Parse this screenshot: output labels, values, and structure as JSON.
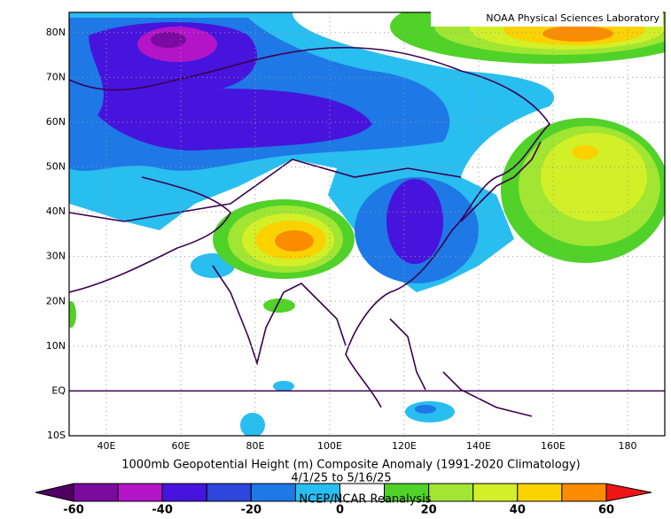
{
  "header": {
    "credit": "NOAA Physical Sciences Laboratory"
  },
  "map": {
    "xlim": [
      30,
      190
    ],
    "ylim": [
      -10,
      84.5
    ],
    "lat_ticks": [
      {
        "value": 80,
        "label": "80N"
      },
      {
        "value": 70,
        "label": "70N"
      },
      {
        "value": 60,
        "label": "60N"
      },
      {
        "value": 50,
        "label": "50N"
      },
      {
        "value": 40,
        "label": "40N"
      },
      {
        "value": 30,
        "label": "30N"
      },
      {
        "value": 20,
        "label": "20N"
      },
      {
        "value": 10,
        "label": "10N"
      },
      {
        "value": 0,
        "label": "EQ"
      },
      {
        "value": -10,
        "label": "10S"
      }
    ],
    "lon_ticks": [
      {
        "value": 40,
        "label": "40E"
      },
      {
        "value": 60,
        "label": "60E"
      },
      {
        "value": 80,
        "label": "80E"
      },
      {
        "value": 100,
        "label": "100E"
      },
      {
        "value": 120,
        "label": "120E"
      },
      {
        "value": 140,
        "label": "140E"
      },
      {
        "value": 160,
        "label": "160E"
      },
      180
    ]
  },
  "caption": {
    "title": "1000mb Geopotential Height (m) Composite Anomaly (1991-2020 Climatology)",
    "dates": "4/1/25  to 5/16/25",
    "source": "NCEP/NCAR Reanalysis"
  },
  "colorbar": {
    "ticks": [
      -60,
      -40,
      -20,
      0,
      20,
      40,
      60
    ],
    "levels": [
      -60,
      -50,
      -40,
      -30,
      -20,
      -10,
      0,
      10,
      20,
      30,
      40,
      50,
      60
    ],
    "colors": [
      "#7a0aa0",
      "#b414c8",
      "#4614dc",
      "#2d46dc",
      "#1e78e6",
      "#28bef0",
      "#ffffff",
      "#50d228",
      "#a0e632",
      "#d2f028",
      "#fad200",
      "#fa8c00"
    ],
    "under_color": "#500064",
    "over_color": "#f01414"
  }
}
